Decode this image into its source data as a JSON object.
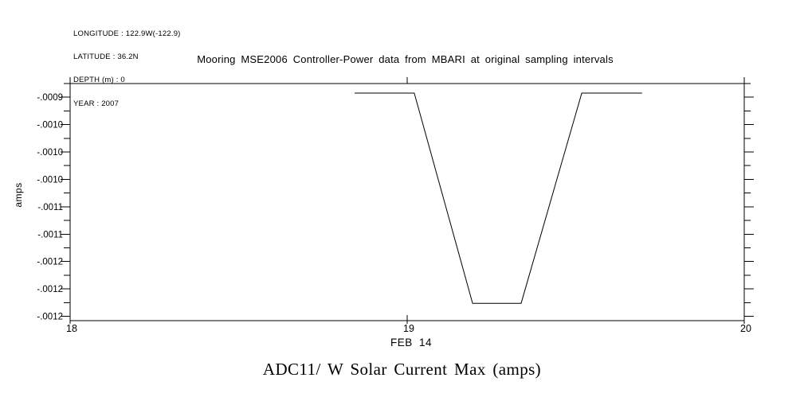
{
  "meta": {
    "longitude": "LONGITUDE : 122.9W(-122.9)",
    "latitude": "LATITUDE : 36.2N",
    "depth": "DEPTH (m) : 0",
    "year": "YEAR : 2007"
  },
  "title": "Mooring MSE2006 Controller-Power data from MBARI at original sampling intervals",
  "bottom_title": "ADC11/ W Solar Current Max (amps)",
  "axes": {
    "ylabel": "amps",
    "xlabel": "FEB 14",
    "x_tick_labels": [
      "18",
      "19",
      "20"
    ],
    "y_tick_labels": [
      "-.0009",
      "-.0010",
      "-.0010",
      "-.0010",
      "-.0011",
      "-.0011",
      "-.0012",
      "-.0012",
      "-.0012"
    ]
  },
  "colors": {
    "line": "#000000",
    "background": "#ffffff",
    "text": "#000000"
  },
  "chart_data": {
    "type": "line",
    "title": "Mooring MSE2006 Controller-Power data from MBARI at original sampling intervals",
    "subtitle": "ADC11/ W Solar Current Max (amps)",
    "xlabel": "FEB 14",
    "ylabel": "amps",
    "xlim": [
      18,
      20
    ],
    "ylim": [
      -0.001247,
      -0.0009
    ],
    "x_ticks": [
      18,
      19,
      20
    ],
    "y_tick_values": [
      -0.00092,
      -0.00096,
      -0.001,
      -0.00104,
      -0.00108,
      -0.00112,
      -0.00116,
      -0.0012,
      -0.00124
    ],
    "grid": false,
    "legend": false,
    "series": [
      {
        "name": "ADC11/ W Solar Current Max (amps)",
        "x": [
          18.844,
          19.021,
          19.194,
          19.338,
          19.518,
          19.697
        ],
        "y": [
          -0.000914,
          -0.000914,
          -0.001221,
          -0.001221,
          -0.000914,
          -0.000914
        ]
      }
    ]
  }
}
